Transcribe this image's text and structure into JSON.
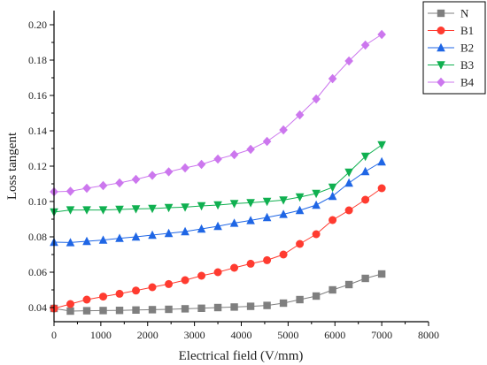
{
  "chart_data": {
    "type": "line",
    "xlabel": "Electrical field (V/mm)",
    "ylabel": "Loss tangent",
    "xlim": [
      0,
      8000
    ],
    "ylim": [
      0.032,
      0.208
    ],
    "xticks": [
      0,
      1000,
      2000,
      3000,
      4000,
      5000,
      6000,
      7000,
      8000
    ],
    "yticks": [
      0.04,
      0.06,
      0.08,
      0.1,
      0.12,
      0.14,
      0.16,
      0.18,
      0.2
    ],
    "xtick_labels": [
      "0",
      "1000",
      "2000",
      "3000",
      "4000",
      "5000",
      "6000",
      "7000",
      "8000"
    ],
    "ytick_labels": [
      "0.04",
      "0.06",
      "0.08",
      "0.10",
      "0.12",
      "0.14",
      "0.16",
      "0.18",
      "0.20"
    ],
    "grid": false,
    "legend_position": "top-right",
    "x": [
      0,
      350,
      700,
      1050,
      1400,
      1750,
      2100,
      2450,
      2800,
      3150,
      3500,
      3850,
      4200,
      4550,
      4900,
      5250,
      5600,
      5950,
      6300,
      6650,
      7000
    ],
    "series": [
      {
        "name": "N",
        "marker": "square",
        "color": "#7f7f7f",
        "values": [
          0.0395,
          0.038,
          0.0382,
          0.0383,
          0.0384,
          0.0386,
          0.0388,
          0.039,
          0.0393,
          0.0396,
          0.04,
          0.0403,
          0.0407,
          0.0412,
          0.0425,
          0.0445,
          0.0465,
          0.05,
          0.053,
          0.0565,
          0.059
        ]
      },
      {
        "name": "B1",
        "marker": "circle",
        "color": "#ff3b30",
        "values": [
          0.0395,
          0.042,
          0.0445,
          0.0462,
          0.0478,
          0.0496,
          0.0515,
          0.0533,
          0.0555,
          0.058,
          0.06,
          0.0625,
          0.0648,
          0.0668,
          0.07,
          0.076,
          0.0815,
          0.0895,
          0.095,
          0.101,
          0.1075
        ]
      },
      {
        "name": "B2",
        "marker": "triangle-up",
        "color": "#1f66e5",
        "values": [
          0.077,
          0.0768,
          0.0775,
          0.0782,
          0.0792,
          0.08,
          0.081,
          0.082,
          0.083,
          0.0845,
          0.086,
          0.0878,
          0.0893,
          0.091,
          0.0928,
          0.095,
          0.098,
          0.103,
          0.1105,
          0.117,
          0.1225
        ]
      },
      {
        "name": "B3",
        "marker": "triangle-down",
        "color": "#10b050",
        "values": [
          0.094,
          0.0952,
          0.0952,
          0.0952,
          0.0955,
          0.0958,
          0.096,
          0.0965,
          0.0968,
          0.0975,
          0.098,
          0.0988,
          0.0993,
          0.1,
          0.1008,
          0.1025,
          0.1045,
          0.108,
          0.1165,
          0.1255,
          0.132
        ]
      },
      {
        "name": "B4",
        "marker": "diamond",
        "color": "#cc77ee",
        "values": [
          0.1055,
          0.1058,
          0.1075,
          0.109,
          0.1105,
          0.1125,
          0.1148,
          0.1168,
          0.119,
          0.121,
          0.124,
          0.1265,
          0.1295,
          0.134,
          0.1405,
          0.149,
          0.158,
          0.1695,
          0.1795,
          0.1885,
          0.1945
        ]
      }
    ]
  }
}
